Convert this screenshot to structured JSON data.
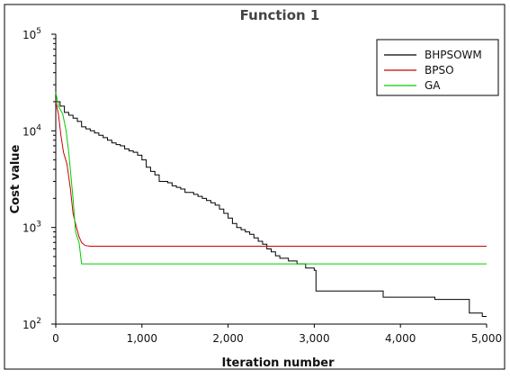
{
  "chart_data": {
    "type": "line",
    "title": "Function 1",
    "xlabel": "Iteration number",
    "ylabel": "Cost value",
    "xlim": [
      0,
      5000
    ],
    "ylim": [
      100,
      100000
    ],
    "yscale": "log",
    "grid": false,
    "legend_position": "top-right",
    "x_ticks": [
      {
        "value": 0,
        "label": "0"
      },
      {
        "value": 1000,
        "label": "1,000"
      },
      {
        "value": 2000,
        "label": "2,000"
      },
      {
        "value": 3000,
        "label": "3,000"
      },
      {
        "value": 4000,
        "label": "4,000"
      },
      {
        "value": 5000,
        "label": "5,000"
      }
    ],
    "y_ticks": [
      {
        "value": 100,
        "base": "10",
        "exp": "2"
      },
      {
        "value": 1000,
        "base": "10",
        "exp": "3"
      },
      {
        "value": 10000,
        "base": "10",
        "exp": "4"
      },
      {
        "value": 100000,
        "base": "10",
        "exp": "5"
      }
    ],
    "series": [
      {
        "name": "BHPSOWM",
        "color": "#000000",
        "step": true,
        "points": [
          [
            0,
            20000
          ],
          [
            50,
            18000
          ],
          [
            100,
            15500
          ],
          [
            150,
            14500
          ],
          [
            200,
            13500
          ],
          [
            250,
            12500
          ],
          [
            300,
            11000
          ],
          [
            350,
            10500
          ],
          [
            400,
            10000
          ],
          [
            450,
            9500
          ],
          [
            500,
            9000
          ],
          [
            550,
            8500
          ],
          [
            600,
            8000
          ],
          [
            650,
            7500
          ],
          [
            700,
            7200
          ],
          [
            750,
            7000
          ],
          [
            800,
            6500
          ],
          [
            850,
            6200
          ],
          [
            900,
            6000
          ],
          [
            950,
            5600
          ],
          [
            1000,
            5000
          ],
          [
            1050,
            4200
          ],
          [
            1100,
            3800
          ],
          [
            1150,
            3500
          ],
          [
            1200,
            3000
          ],
          [
            1300,
            2900
          ],
          [
            1350,
            2700
          ],
          [
            1400,
            2600
          ],
          [
            1450,
            2500
          ],
          [
            1500,
            2300
          ],
          [
            1600,
            2200
          ],
          [
            1650,
            2100
          ],
          [
            1700,
            2000
          ],
          [
            1750,
            1900
          ],
          [
            1800,
            1800
          ],
          [
            1850,
            1700
          ],
          [
            1900,
            1550
          ],
          [
            1950,
            1400
          ],
          [
            2000,
            1250
          ],
          [
            2050,
            1100
          ],
          [
            2100,
            1000
          ],
          [
            2150,
            950
          ],
          [
            2200,
            900
          ],
          [
            2250,
            850
          ],
          [
            2300,
            780
          ],
          [
            2350,
            720
          ],
          [
            2400,
            670
          ],
          [
            2450,
            600
          ],
          [
            2500,
            560
          ],
          [
            2550,
            510
          ],
          [
            2600,
            480
          ],
          [
            2700,
            450
          ],
          [
            2800,
            420
          ],
          [
            2900,
            380
          ],
          [
            3000,
            360
          ],
          [
            3020,
            220
          ],
          [
            3800,
            190
          ],
          [
            4400,
            180
          ],
          [
            4800,
            130
          ],
          [
            4950,
            120
          ],
          [
            5000,
            120
          ]
        ]
      },
      {
        "name": "BPSO",
        "color": "#cc0000",
        "step": false,
        "points": [
          [
            0,
            20000
          ],
          [
            30,
            15000
          ],
          [
            60,
            9000
          ],
          [
            90,
            6000
          ],
          [
            130,
            4500
          ],
          [
            170,
            2500
          ],
          [
            200,
            1400
          ],
          [
            240,
            1000
          ],
          [
            270,
            800
          ],
          [
            300,
            700
          ],
          [
            340,
            650
          ],
          [
            400,
            640
          ],
          [
            5000,
            640
          ]
        ]
      },
      {
        "name": "GA",
        "color": "#00cc00",
        "step": false,
        "points": [
          [
            0,
            25000
          ],
          [
            30,
            18000
          ],
          [
            80,
            15000
          ],
          [
            120,
            10000
          ],
          [
            150,
            6000
          ],
          [
            200,
            2000
          ],
          [
            230,
            900
          ],
          [
            270,
            700
          ],
          [
            300,
            420
          ],
          [
            5000,
            420
          ]
        ]
      }
    ]
  }
}
